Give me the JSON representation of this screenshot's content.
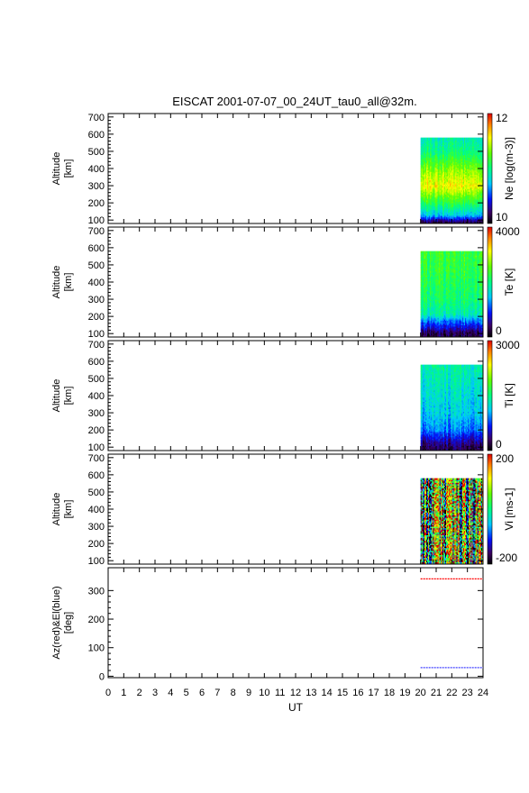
{
  "title": "EISCAT 2001-07-07_00_24UT_tau0_all@32m.",
  "chart_data": {
    "type": "heatmap",
    "xlabel": "UT",
    "xlim": [
      0,
      24
    ],
    "xticks": [
      0,
      1,
      2,
      3,
      4,
      5,
      6,
      7,
      8,
      9,
      10,
      11,
      12,
      13,
      14,
      15,
      16,
      17,
      18,
      19,
      20,
      21,
      22,
      23,
      24
    ],
    "data_window_ut": [
      20,
      24
    ],
    "panels": [
      {
        "ylabel_lines": [
          "Altitude",
          "[km]"
        ],
        "ylim": [
          80,
          720
        ],
        "yticks": [
          100,
          200,
          300,
          400,
          500,
          600,
          700
        ],
        "data_alt_range": [
          85,
          580
        ],
        "cbar_label": "Ne [log(m-3)]",
        "cbar_min_label": "10",
        "cbar_max_label": "12",
        "profile": [
          [
            85,
            0.05
          ],
          [
            100,
            0.15
          ],
          [
            130,
            0.38
          ],
          [
            200,
            0.55
          ],
          [
            300,
            0.78
          ],
          [
            400,
            0.66
          ],
          [
            500,
            0.5
          ],
          [
            580,
            0.45
          ]
        ]
      },
      {
        "ylabel_lines": [
          "Altitude",
          "[km]"
        ],
        "ylim": [
          80,
          720
        ],
        "yticks": [
          100,
          200,
          300,
          400,
          500,
          600,
          700
        ],
        "data_alt_range": [
          85,
          580
        ],
        "cbar_label": "Te [K]",
        "cbar_min_label": "0",
        "cbar_max_label": "4000",
        "profile": [
          [
            85,
            0.08
          ],
          [
            110,
            0.1
          ],
          [
            140,
            0.2
          ],
          [
            175,
            0.3
          ],
          [
            210,
            0.45
          ],
          [
            300,
            0.52
          ],
          [
            450,
            0.56
          ],
          [
            580,
            0.58
          ]
        ]
      },
      {
        "ylabel_lines": [
          "Altitude",
          "[km]"
        ],
        "ylim": [
          80,
          720
        ],
        "yticks": [
          100,
          200,
          300,
          400,
          500,
          600,
          700
        ],
        "data_alt_range": [
          85,
          580
        ],
        "cbar_label": "Ti [K]",
        "cbar_min_label": "0",
        "cbar_max_label": "3000",
        "profile": [
          [
            85,
            0.08
          ],
          [
            110,
            0.1
          ],
          [
            150,
            0.18
          ],
          [
            200,
            0.3
          ],
          [
            300,
            0.38
          ],
          [
            450,
            0.42
          ],
          [
            580,
            0.46
          ]
        ]
      },
      {
        "ylabel_lines": [
          "Altitude",
          "[km]"
        ],
        "ylim": [
          80,
          720
        ],
        "yticks": [
          100,
          200,
          300,
          400,
          500,
          600,
          700
        ],
        "data_alt_range": [
          85,
          580
        ],
        "cbar_label": "Vi [ms-1]",
        "cbar_min_label": "-200",
        "cbar_max_label": "200",
        "profile": [
          [
            85,
            0.5
          ],
          [
            580,
            0.5
          ]
        ]
      }
    ],
    "angle_panel": {
      "ylabel_lines": [
        "Az(red)&El(blue)",
        "[deg]"
      ],
      "ylim": [
        -5,
        380
      ],
      "yticks": [
        0,
        100,
        200,
        300
      ],
      "series": [
        {
          "color": "#ff0000",
          "x": [
            20,
            24
          ],
          "y": [
            341,
            341
          ]
        },
        {
          "color": "#4040ff",
          "x": [
            20,
            24
          ],
          "y": [
            30,
            30
          ]
        }
      ]
    }
  }
}
